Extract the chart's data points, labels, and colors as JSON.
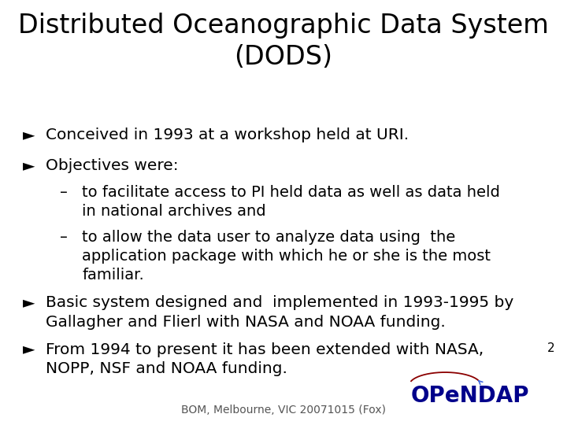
{
  "title_line1": "Distributed Oceanographic Data System",
  "title_line2": "(DODS)",
  "title_fontsize": 24,
  "title_color": "#000000",
  "background_color": "#ffffff",
  "bullet_symbol": "Ø",
  "dash_symbol": "–",
  "text_color": "#000000",
  "text_fontsize": 14.5,
  "sub_fontsize": 14.0,
  "footer_text": "BOM, Melbourne, VIC 20071015 (Fox)",
  "footer_fontsize": 10,
  "page_number": "2",
  "bullets": [
    "Conceived in 1993 at a workshop held at URI.",
    "Objectives were:",
    "Basic system designed and  implemented in 1993-1995 by\nGallagher and Flierl with NASA and NOAA funding.",
    "From 1994 to present it has been extended with NASA,\nNOPP, NSF and NOAA funding."
  ],
  "sub_bullets": [
    "to facilitate access to PI held data as well as data held\nin national archives and",
    "to allow the data user to analyze data using  the\napplication package with which he or she is the most\nfamiliar."
  ],
  "opendap_color": "#00008B",
  "opendap_swoosh_color": "#8B0000",
  "opendap_arrow_color": "#4169E1",
  "opendap_fontsize": 20
}
